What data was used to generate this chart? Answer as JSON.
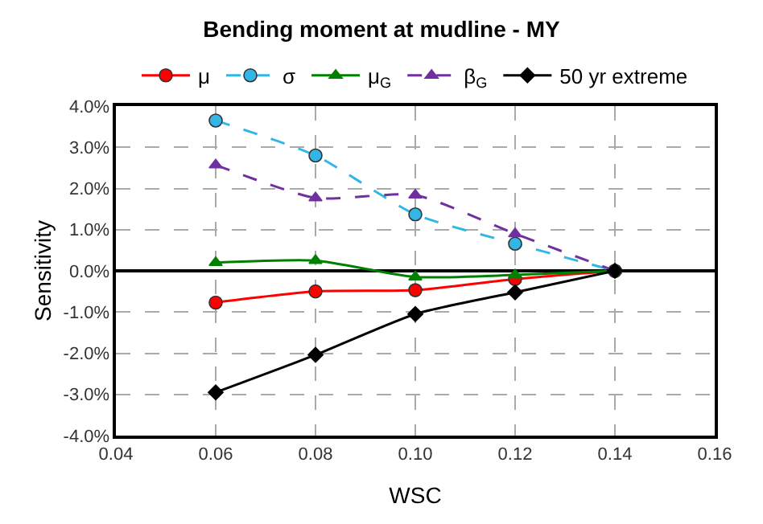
{
  "chart_data": {
    "type": "line",
    "title": "Bending moment at mudline - MY",
    "xlabel": "WSC",
    "ylabel": "Sensitivity",
    "x": [
      0.06,
      0.08,
      0.1,
      0.12,
      0.14
    ],
    "series": [
      {
        "name": "μ",
        "color": "#ff0000",
        "marker": "circle",
        "line_style": "solid",
        "values": [
          -0.77,
          -0.5,
          -0.47,
          -0.2,
          0
        ]
      },
      {
        "name": "σ",
        "color": "#33b5e5",
        "marker": "circle",
        "line_style": "dashed",
        "values": [
          3.65,
          2.8,
          1.37,
          0.66,
          0
        ]
      },
      {
        "name": "μ$_{G}$",
        "color": "#008000",
        "marker": "triangle",
        "line_style": "solid",
        "values": [
          0.2,
          0.25,
          -0.15,
          -0.1,
          0
        ]
      },
      {
        "name": "β$_{G}$",
        "color": "#7030a0",
        "marker": "triangle",
        "line_style": "dashed",
        "values": [
          2.57,
          1.77,
          1.84,
          0.9,
          0
        ]
      },
      {
        "name": "50 yr extreme",
        "color": "#000000",
        "marker": "diamond",
        "line_style": "solid",
        "values": [
          -2.95,
          -2.04,
          -1.05,
          -0.52,
          0
        ]
      }
    ],
    "xlim": [
      0.04,
      0.16
    ],
    "xticks": [
      {
        "value": 0.04,
        "label": "0.04"
      },
      {
        "value": 0.06,
        "label": "0.06"
      },
      {
        "value": 0.08,
        "label": "0.08"
      },
      {
        "value": 0.1,
        "label": "0.10"
      },
      {
        "value": 0.12,
        "label": "0.12"
      },
      {
        "value": 0.14,
        "label": "0.14"
      },
      {
        "value": 0.16,
        "label": "0.16"
      }
    ],
    "ylim": [
      -4,
      4
    ],
    "yticks": [
      {
        "value": -4,
        "label": "-4.0%"
      },
      {
        "value": -3,
        "label": "-3.0%"
      },
      {
        "value": -2,
        "label": "-2.0%"
      },
      {
        "value": -1,
        "label": "-1.0%"
      },
      {
        "value": 0,
        "label": "0.0%"
      },
      {
        "value": 1,
        "label": "1.0%"
      },
      {
        "value": 2,
        "label": "2.0%"
      },
      {
        "value": 3,
        "label": "3.0%"
      },
      {
        "value": 4,
        "label": "4.0%"
      }
    ],
    "grid": true,
    "legend": "top"
  }
}
